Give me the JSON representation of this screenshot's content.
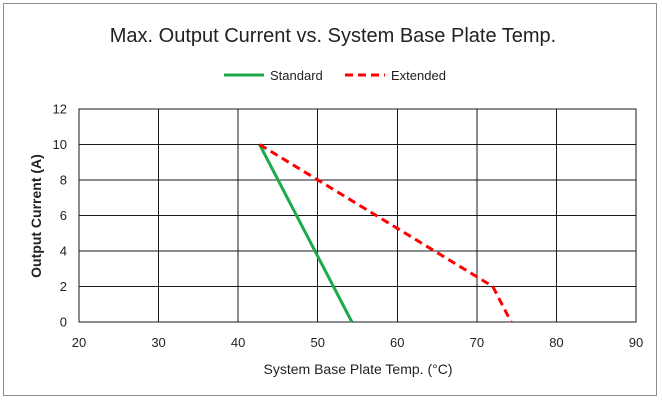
{
  "chart_data": {
    "type": "line",
    "title": "Max. Output Current vs. System Base Plate Temp.",
    "xlabel": "System Base Plate Temp. (°C)",
    "ylabel": "Output Current (A)",
    "xlim": [
      20,
      90
    ],
    "ylim": [
      0,
      12
    ],
    "x_ticks": [
      20,
      30,
      40,
      50,
      60,
      70,
      80,
      90
    ],
    "y_ticks": [
      0,
      2,
      4,
      6,
      8,
      10,
      12
    ],
    "grid": true,
    "legend_position": "top-center",
    "series": [
      {
        "name": "Standard",
        "color": "#1daa4b",
        "style": "solid",
        "points": [
          [
            42.7,
            10
          ],
          [
            54.3,
            0
          ]
        ]
      },
      {
        "name": "Extended",
        "color": "#ff0000",
        "style": "dashed",
        "points": [
          [
            42.7,
            10
          ],
          [
            72,
            2
          ],
          [
            74.3,
            0
          ]
        ]
      }
    ]
  }
}
